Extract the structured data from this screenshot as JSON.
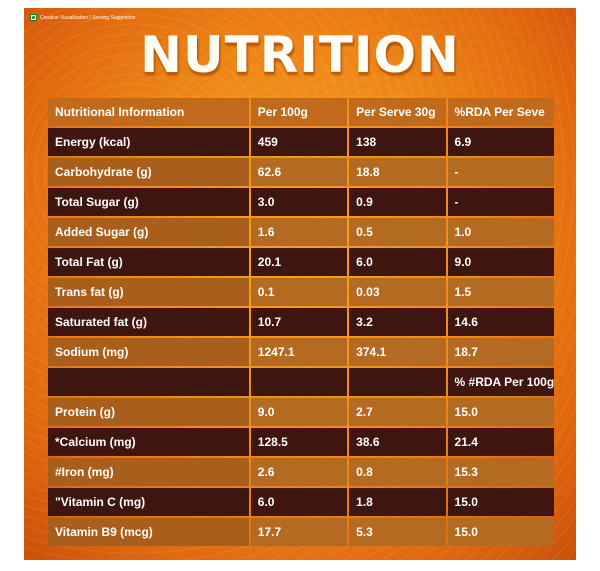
{
  "badge_text": "Creative Visualisation | Serving Suggestion",
  "title": "NUTRITION",
  "headers": [
    "Nutritional Information",
    "Per 100g",
    "Per Serve 30g",
    "%RDA Per Seve"
  ],
  "rows": [
    {
      "tone": "dark",
      "cells": [
        "Energy (kcal)",
        "459",
        "138",
        "6.9"
      ]
    },
    {
      "tone": "light",
      "cells": [
        "Carbohydrate (g)",
        "62.6",
        "18.8",
        "-"
      ]
    },
    {
      "tone": "dark",
      "cells": [
        "Total Sugar (g)",
        "3.0",
        "0.9",
        "-"
      ]
    },
    {
      "tone": "light",
      "cells": [
        "Added Sugar (g)",
        "1.6",
        "0.5",
        "1.0"
      ]
    },
    {
      "tone": "dark",
      "cells": [
        "Total Fat (g)",
        "20.1",
        "6.0",
        "9.0"
      ]
    },
    {
      "tone": "light",
      "cells": [
        "Trans fat (g)",
        "0.1",
        "0.03",
        "1.5"
      ]
    },
    {
      "tone": "dark",
      "cells": [
        "Saturated fat (g)",
        "10.7",
        "3.2",
        "14.6"
      ]
    },
    {
      "tone": "light",
      "cells": [
        "Sodium (mg)",
        "1247.1",
        "374.1",
        "18.7"
      ]
    },
    {
      "tone": "dark",
      "cells": [
        "",
        "",
        "",
        "% #RDA Per 100g"
      ]
    },
    {
      "tone": "light",
      "cells": [
        "Protein (g)",
        "9.0",
        "2.7",
        "15.0"
      ]
    },
    {
      "tone": "dark",
      "cells": [
        "*Calcium (mg)",
        "128.5",
        "38.6",
        "21.4"
      ]
    },
    {
      "tone": "light",
      "cells": [
        "#Iron (mg)",
        "2.6",
        "0.8",
        "15.3"
      ]
    },
    {
      "tone": "dark",
      "cells": [
        "\"Vitamin C (mg)",
        "6.0",
        "1.8",
        "15.0"
      ]
    },
    {
      "tone": "light",
      "cells": [
        "Vitamin B9 (mcg)",
        "17.7",
        "5.3",
        "15.0"
      ]
    }
  ],
  "colors": {
    "dark_row": "#3e160f",
    "light_row": "#b56a22",
    "header_row": "#c26a1c",
    "background": "#f08a18"
  }
}
